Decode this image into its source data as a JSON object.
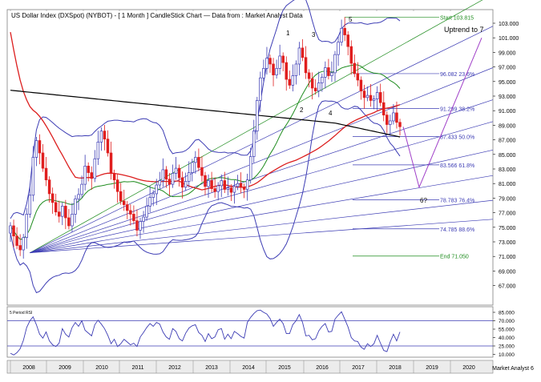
{
  "chart_data": [
    {
      "type": "candlestick",
      "title": "US Dollar Index (DXSpot) (NYBOT) -  [ 1 Month ] CandleStick Chart — Data from : Market Analyst Data",
      "ylim": [
        65,
        105
      ],
      "y_ticks": [
        "103.000",
        "101.000",
        "99.000",
        "97.000",
        "95.000",
        "93.000",
        "91.000",
        "89.000",
        "87.000",
        "85.000",
        "83.000",
        "81.000",
        "79.000",
        "77.000",
        "75.000",
        "73.000",
        "71.000",
        "69.000",
        "67.000"
      ],
      "x_tick_labels": [
        "2008",
        "2009",
        "2010",
        "2011",
        "2012",
        "2013",
        "2014",
        "2015",
        "2016",
        "2017",
        "2018",
        "2019",
        "2020"
      ],
      "footer_label": "Market Analyst 6",
      "close_series": [
        75.2,
        73.8,
        72.5,
        71.9,
        73.6,
        76.8,
        79.4,
        84.6,
        86.9,
        85.2,
        83.1,
        81.5,
        79.6,
        78.4,
        77.1,
        76.5,
        77.9,
        76.3,
        75.2,
        76.8,
        78.9,
        79.5,
        80.9,
        83.4,
        82.5,
        81.7,
        84.4,
        86.7,
        88.2,
        87.1,
        85.2,
        82.4,
        81.5,
        79.9,
        78.6,
        78.1,
        77.3,
        76.8,
        75.9,
        74.6,
        75.8,
        76.4,
        77.9,
        79.1,
        79.6,
        80.8,
        81.4,
        82.9,
        81.6,
        80.9,
        82.4,
        83.1,
        81.8,
        80.5,
        81.3,
        82.5,
        83.9,
        84.6,
        83.2,
        82.1,
        80.6,
        81.4,
        80.3,
        79.9,
        80.7,
        81.4,
        80.2,
        80.4,
        79.8,
        80.6,
        81.0,
        80.5,
        80.2,
        81.5,
        84.7,
        88.2,
        92.4,
        95.5,
        96.8,
        98.2,
        97.4,
        95.9,
        96.8,
        98.5,
        97.6,
        95.3,
        94.5,
        95.8,
        97.4,
        99.6,
        98.3,
        96.2,
        95.4,
        94.1,
        93.7,
        94.8,
        95.6,
        96.9,
        95.8,
        96.2,
        98.7,
        100.4,
        102.3,
        101.4,
        99.8,
        97.5,
        96.1,
        95.2,
        93.7,
        92.8,
        93.1,
        92.4,
        92.6,
        93.5,
        92.1,
        90.4,
        89.1,
        89.6,
        90.7,
        89.4,
        88.8
      ],
      "indicators": [
        {
          "name": "Bollinger Bands",
          "color": "#3c3cb4"
        },
        {
          "name": "Moving average (black)",
          "color": "#000000"
        },
        {
          "name": "Moving average (red)",
          "color": "#dc1e1e"
        },
        {
          "name": "Moving average (green)",
          "color": "#1e8c1e"
        }
      ],
      "fib_levels": [
        {
          "label": "Start 103.815",
          "value": 103.815,
          "color": "#1e8c1e"
        },
        {
          "label": "96.082 23.6%",
          "value": 96.082,
          "color": "#3c3cb4"
        },
        {
          "label": "91.299 38.2%",
          "value": 91.299,
          "color": "#3c3cb4"
        },
        {
          "label": "87.433 50.0%",
          "value": 87.433,
          "color": "#3c3cb4"
        },
        {
          "label": "83.566 61.8%",
          "value": 83.566,
          "color": "#3c3cb4"
        },
        {
          "label": "78.783 76.4%",
          "value": 78.783,
          "color": "#3c3cb4"
        },
        {
          "label": "74.785 88.6%",
          "value": 74.785,
          "color": "#3c3cb4"
        },
        {
          "label": "End 71.050",
          "value": 71.05,
          "color": "#1e8c1e"
        }
      ],
      "annotations": [
        "1",
        "2",
        "3",
        "4",
        "5",
        "6?",
        "Uptrend to 7"
      ],
      "colors": {
        "up": "#3c3cb4",
        "down": "#e01e1e",
        "bands": "#3c3cb4",
        "fan": "#3c3cb4",
        "fan_top": "#1e8c1e",
        "projection": "#a040c8"
      }
    },
    {
      "type": "line",
      "title": "5 Period RSI",
      "y_ticks": [
        "85.000",
        "70.000",
        "55.000",
        "40.000",
        "25.000",
        "10.000"
      ],
      "hlines": [
        70,
        25
      ],
      "ylim": [
        5,
        95
      ],
      "color": "#3c3cb4",
      "values": [
        12,
        9,
        13,
        20,
        35,
        58,
        70,
        77,
        63,
        46,
        39,
        50,
        34,
        27,
        24,
        30,
        56,
        46,
        41,
        58,
        67,
        60,
        70,
        53,
        48,
        43,
        63,
        71,
        64,
        56,
        44,
        29,
        37,
        24,
        29,
        37,
        32,
        27,
        30,
        24,
        41,
        49,
        58,
        65,
        60,
        67,
        64,
        50,
        41,
        37,
        56,
        51,
        38,
        34,
        48,
        57,
        61,
        63,
        49,
        44,
        33,
        47,
        38,
        41,
        54,
        56,
        37,
        46,
        38,
        51,
        47,
        42,
        39,
        67,
        76,
        83,
        88,
        89,
        85,
        82,
        74,
        60,
        67,
        73,
        65,
        47,
        47,
        63,
        70,
        81,
        67,
        43,
        44,
        36,
        38,
        52,
        60,
        65,
        50,
        51,
        73,
        80,
        86,
        73,
        59,
        40,
        34,
        33,
        23,
        19,
        29,
        24,
        29,
        44,
        30,
        17,
        15,
        32,
        46,
        34,
        50
      ]
    }
  ]
}
